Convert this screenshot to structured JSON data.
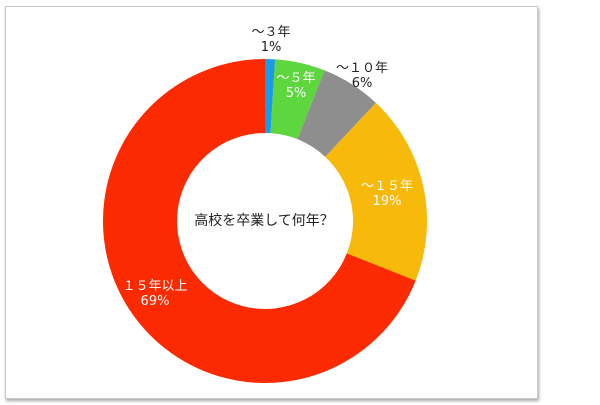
{
  "chart_data": {
    "type": "pie",
    "donut": true,
    "title": "高校を卒業して何年？",
    "categories": [
      "～３年",
      "～５年",
      "～１０年",
      "～１５年",
      "１５年以上"
    ],
    "values": [
      1,
      5,
      6,
      19,
      69
    ],
    "value_labels": [
      "1%",
      "5%",
      "6%",
      "19%",
      "69%"
    ],
    "colors": [
      "#1a9be6",
      "#5ed63e",
      "#8e8e8e",
      "#f7b90a",
      "#fb2a00"
    ],
    "label_colors": [
      "#222222",
      "#ffffff",
      "#222222",
      "#ffffff",
      "#ffffff"
    ],
    "start": "top",
    "direction": "clockwise",
    "legend": "none"
  }
}
